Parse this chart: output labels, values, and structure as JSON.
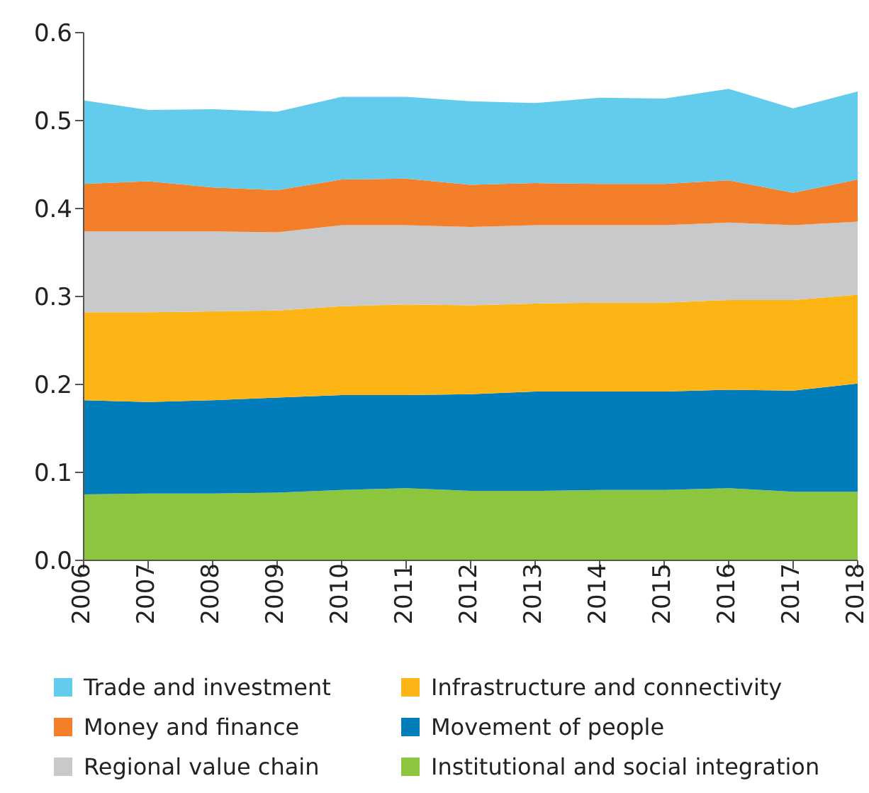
{
  "chart_data": {
    "type": "area",
    "stacked": true,
    "categories": [
      "2006",
      "2007",
      "2008",
      "2009",
      "2010",
      "2011",
      "2012",
      "2013",
      "2014",
      "2015",
      "2016",
      "2017",
      "2018"
    ],
    "series": [
      {
        "name": "Institutional and social integration",
        "color": "#8cc63f",
        "values": [
          0.075,
          0.076,
          0.076,
          0.077,
          0.08,
          0.082,
          0.079,
          0.079,
          0.08,
          0.08,
          0.082,
          0.078,
          0.078
        ]
      },
      {
        "name": "Movement of people",
        "color": "#007dba",
        "values": [
          0.107,
          0.104,
          0.106,
          0.108,
          0.108,
          0.106,
          0.11,
          0.113,
          0.112,
          0.112,
          0.112,
          0.115,
          0.123
        ]
      },
      {
        "name": "Infrastructure and connectivity",
        "color": "#fdb515",
        "values": [
          0.1,
          0.102,
          0.101,
          0.099,
          0.101,
          0.103,
          0.101,
          0.1,
          0.101,
          0.101,
          0.102,
          0.103,
          0.101
        ]
      },
      {
        "name": "Regional value chain",
        "color": "#c8c9cb",
        "values": [
          0.092,
          0.092,
          0.091,
          0.089,
          0.092,
          0.09,
          0.089,
          0.089,
          0.088,
          0.088,
          0.088,
          0.085,
          0.083
        ]
      },
      {
        "name": "Money and finance",
        "color": "#f47f2a",
        "values": [
          0.054,
          0.057,
          0.05,
          0.048,
          0.052,
          0.053,
          0.048,
          0.048,
          0.047,
          0.047,
          0.048,
          0.037,
          0.048
        ]
      },
      {
        "name": "Trade and investment",
        "color": "#63cbec",
        "values": [
          0.095,
          0.081,
          0.089,
          0.089,
          0.094,
          0.093,
          0.095,
          0.091,
          0.098,
          0.097,
          0.104,
          0.096,
          0.1
        ]
      }
    ],
    "ylim": [
      0,
      0.6
    ],
    "yticks": [
      {
        "value": 0,
        "label": "0.0"
      },
      {
        "value": 0.1,
        "label": "0.1"
      },
      {
        "value": 0.2,
        "label": "0.2"
      },
      {
        "value": 0.3,
        "label": "0.3"
      },
      {
        "value": 0.4,
        "label": "0.4"
      },
      {
        "value": 0.5,
        "label": "0.5"
      },
      {
        "value": 0.6,
        "label": "0.6"
      }
    ],
    "grid": false,
    "legend": "bottom"
  }
}
